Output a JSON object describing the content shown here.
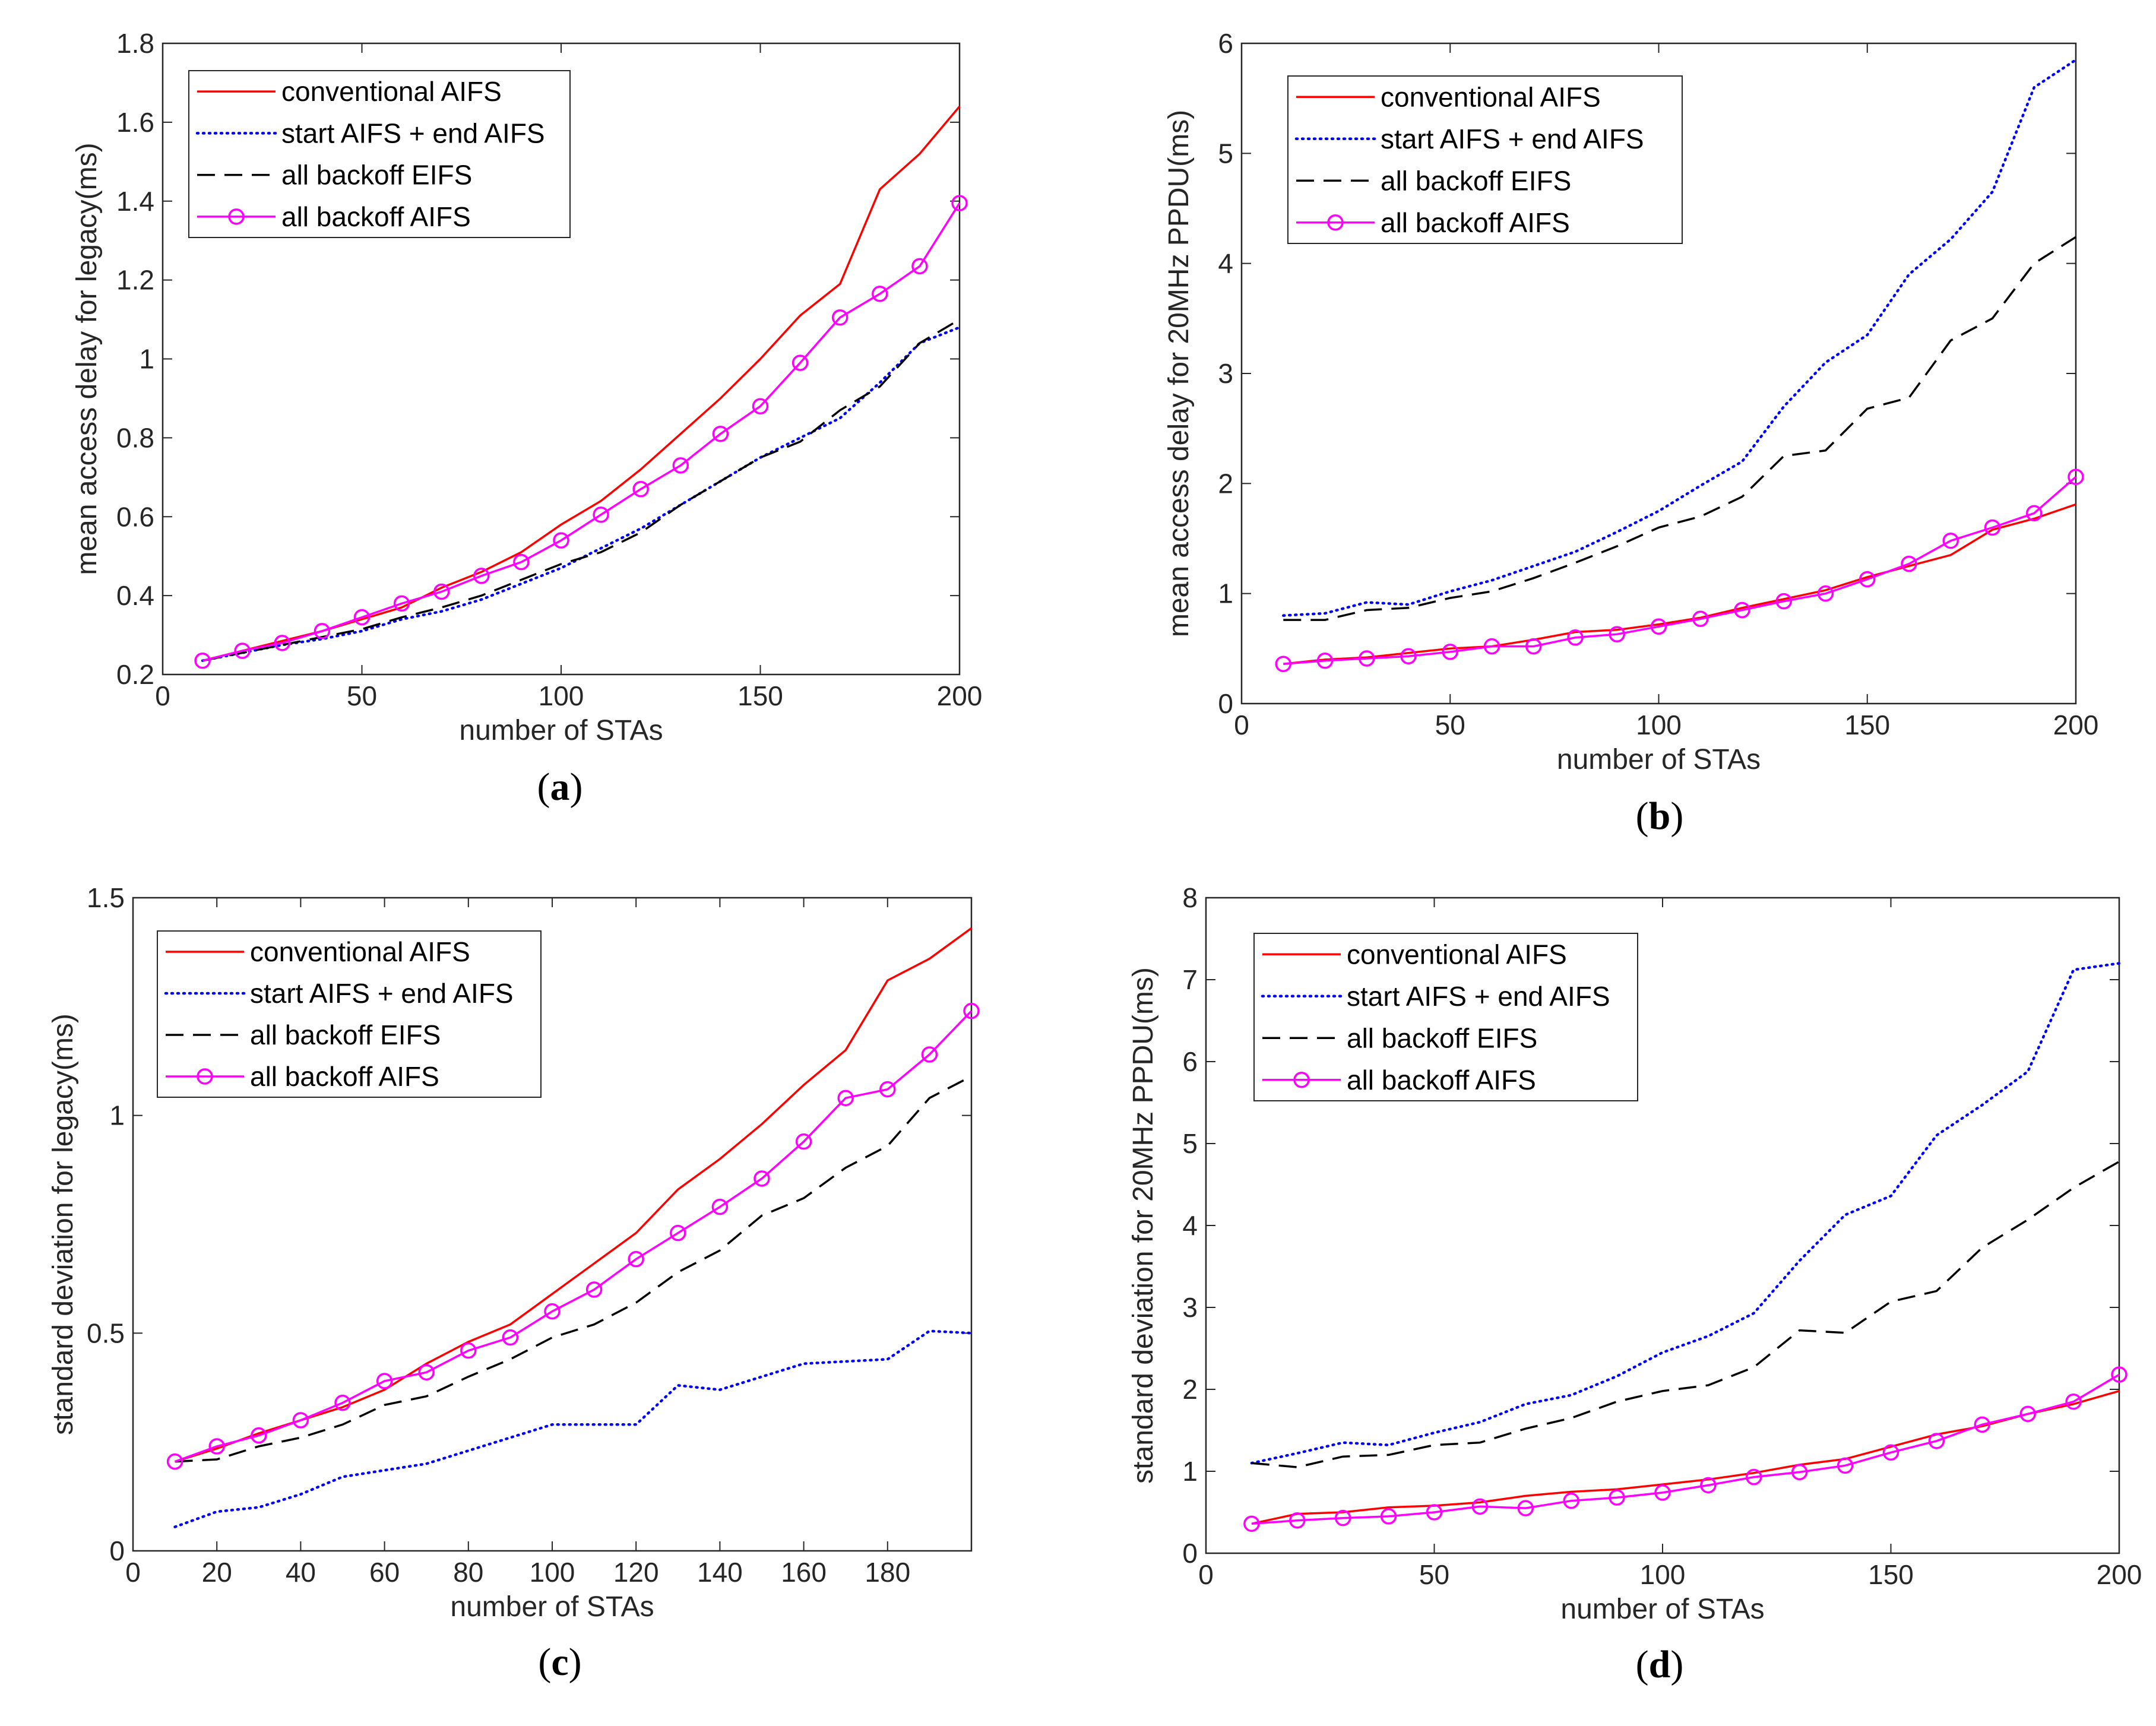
{
  "colors": {
    "conventional": "#ff0000",
    "start_end": "#0000ff",
    "eifs": "#000000",
    "aifs": "#ff00ff",
    "axis": "#262626"
  },
  "legend_labels": [
    "conventional AIFS",
    "start AIFS + end AIFS",
    "all backoff EIFS",
    "all backoff AIFS"
  ],
  "chart_data": [
    {
      "id": "a",
      "type": "line",
      "caption": "a",
      "xlabel": "number of STAs",
      "ylabel": "mean access delay for legacy(ms)",
      "xlim": [
        0,
        200
      ],
      "ylim": [
        0.2,
        1.8
      ],
      "xticks": [
        0,
        50,
        100,
        150,
        200
      ],
      "xtick_labels": [
        "0",
        "50",
        "100",
        "150",
        "200"
      ],
      "yticks": [
        0.2,
        0.4,
        0.6,
        0.8,
        1,
        1.2,
        1.4,
        1.6,
        1.8
      ],
      "ytick_labels": [
        "0.2",
        "0.4",
        "0.6",
        "0.8",
        "1",
        "1.2",
        "1.4",
        "1.6",
        "1.8"
      ],
      "legend_position": "top-left",
      "x": [
        10,
        20,
        30,
        40,
        50,
        60,
        70,
        80,
        90,
        100,
        110,
        120,
        130,
        140,
        150,
        160,
        170,
        180,
        190,
        200
      ],
      "series": [
        {
          "name": "conventional AIFS",
          "style": "solid",
          "values": [
            0.235,
            0.26,
            0.285,
            0.31,
            0.34,
            0.37,
            0.42,
            0.46,
            0.51,
            0.58,
            0.64,
            0.72,
            0.81,
            0.9,
            1.0,
            1.11,
            1.19,
            1.43,
            1.52,
            1.64
          ]
        },
        {
          "name": "start AIFS + end AIFS",
          "style": "dotted",
          "values": [
            0.235,
            0.255,
            0.275,
            0.29,
            0.31,
            0.34,
            0.36,
            0.39,
            0.43,
            0.47,
            0.52,
            0.57,
            0.63,
            0.69,
            0.75,
            0.8,
            0.85,
            0.94,
            1.04,
            1.08
          ]
        },
        {
          "name": "all backoff EIFS",
          "style": "dashed",
          "values": [
            0.235,
            0.255,
            0.275,
            0.295,
            0.315,
            0.345,
            0.37,
            0.4,
            0.44,
            0.48,
            0.51,
            0.56,
            0.63,
            0.69,
            0.75,
            0.79,
            0.87,
            0.93,
            1.04,
            1.1
          ]
        },
        {
          "name": "all backoff AIFS",
          "style": "markers",
          "values": [
            0.235,
            0.26,
            0.28,
            0.31,
            0.345,
            0.38,
            0.41,
            0.45,
            0.485,
            0.54,
            0.605,
            0.67,
            0.73,
            0.81,
            0.88,
            0.99,
            1.105,
            1.165,
            1.235,
            1.395
          ]
        }
      ]
    },
    {
      "id": "b",
      "type": "line",
      "caption": "b",
      "xlabel": "number of STAs",
      "ylabel": "mean access delay for 20MHz PPDU(ms)",
      "xlim": [
        0,
        200
      ],
      "ylim": [
        0,
        6
      ],
      "xticks": [
        0,
        50,
        100,
        150,
        200
      ],
      "xtick_labels": [
        "0",
        "50",
        "100",
        "150",
        "200"
      ],
      "yticks": [
        0,
        1,
        2,
        3,
        4,
        5,
        6
      ],
      "ytick_labels": [
        "0",
        "1",
        "2",
        "3",
        "4",
        "5",
        "6"
      ],
      "legend_position": "top-left",
      "x": [
        10,
        20,
        30,
        40,
        50,
        60,
        70,
        80,
        90,
        100,
        110,
        120,
        130,
        140,
        150,
        160,
        170,
        180,
        190,
        200
      ],
      "series": [
        {
          "name": "conventional AIFS",
          "style": "solid",
          "values": [
            0.36,
            0.4,
            0.42,
            0.46,
            0.5,
            0.52,
            0.58,
            0.65,
            0.67,
            0.72,
            0.78,
            0.87,
            0.95,
            1.03,
            1.15,
            1.25,
            1.35,
            1.58,
            1.68,
            1.81
          ]
        },
        {
          "name": "start AIFS + end AIFS",
          "style": "dotted",
          "values": [
            0.8,
            0.82,
            0.92,
            0.9,
            1.02,
            1.12,
            1.25,
            1.38,
            1.56,
            1.75,
            1.98,
            2.2,
            2.7,
            3.1,
            3.35,
            3.9,
            4.22,
            4.65,
            5.6,
            5.85
          ]
        },
        {
          "name": "all backoff EIFS",
          "style": "dashed",
          "values": [
            0.76,
            0.76,
            0.85,
            0.87,
            0.96,
            1.02,
            1.14,
            1.28,
            1.43,
            1.6,
            1.7,
            1.88,
            2.25,
            2.3,
            2.68,
            2.78,
            3.3,
            3.5,
            4.0,
            4.24
          ]
        },
        {
          "name": "all backoff AIFS",
          "style": "markers",
          "values": [
            0.36,
            0.39,
            0.41,
            0.43,
            0.47,
            0.52,
            0.52,
            0.6,
            0.63,
            0.7,
            0.77,
            0.85,
            0.93,
            1.0,
            1.13,
            1.27,
            1.48,
            1.6,
            1.73,
            2.06
          ]
        }
      ]
    },
    {
      "id": "c",
      "type": "line",
      "caption": "c",
      "xlabel": "number of STAs",
      "ylabel": "standard deviation for legacy(ms)",
      "xlim": [
        0,
        200
      ],
      "ylim": [
        0,
        1.5
      ],
      "xticks": [
        0,
        20,
        40,
        60,
        80,
        100,
        120,
        140,
        160,
        180
      ],
      "xtick_labels": [
        "0",
        "20",
        "40",
        "60",
        "80",
        "100",
        "120",
        "140",
        "160",
        "180"
      ],
      "yticks": [
        0,
        0.5,
        1,
        1.5
      ],
      "ytick_labels": [
        "0",
        "0.5",
        "1",
        "1.5"
      ],
      "legend_position": "top-left",
      "x": [
        10,
        20,
        30,
        40,
        50,
        60,
        70,
        80,
        90,
        100,
        110,
        120,
        130,
        140,
        150,
        160,
        170,
        180,
        190,
        200
      ],
      "series": [
        {
          "name": "conventional AIFS",
          "style": "solid",
          "values": [
            0.205,
            0.235,
            0.27,
            0.3,
            0.33,
            0.37,
            0.43,
            0.48,
            0.52,
            0.59,
            0.66,
            0.73,
            0.83,
            0.9,
            0.98,
            1.07,
            1.15,
            1.31,
            1.36,
            1.43
          ]
        },
        {
          "name": "start AIFS + end AIFS",
          "style": "dotted",
          "values": [
            0.055,
            0.09,
            0.1,
            0.13,
            0.17,
            0.185,
            0.2,
            0.23,
            0.26,
            0.29,
            0.29,
            0.29,
            0.38,
            0.37,
            0.4,
            0.43,
            0.435,
            0.44,
            0.505,
            0.5
          ]
        },
        {
          "name": "all backoff EIFS",
          "style": "dashed",
          "values": [
            0.205,
            0.21,
            0.24,
            0.26,
            0.29,
            0.335,
            0.355,
            0.4,
            0.44,
            0.49,
            0.52,
            0.57,
            0.64,
            0.69,
            0.77,
            0.81,
            0.88,
            0.93,
            1.04,
            1.09
          ]
        },
        {
          "name": "all backoff AIFS",
          "style": "markers",
          "values": [
            0.205,
            0.24,
            0.265,
            0.3,
            0.34,
            0.39,
            0.41,
            0.46,
            0.49,
            0.55,
            0.6,
            0.67,
            0.73,
            0.79,
            0.855,
            0.94,
            1.04,
            1.06,
            1.14,
            1.24
          ]
        }
      ]
    },
    {
      "id": "d",
      "type": "line",
      "caption": "d",
      "xlabel": "number of STAs",
      "ylabel": "standard deviation for 20MHz PPDU(ms)",
      "xlim": [
        0,
        200
      ],
      "ylim": [
        0,
        8
      ],
      "xticks": [
        0,
        50,
        100,
        150,
        200
      ],
      "xtick_labels": [
        "0",
        "50",
        "100",
        "150",
        "200"
      ],
      "yticks": [
        0,
        1,
        2,
        3,
        4,
        5,
        6,
        7,
        8
      ],
      "ytick_labels": [
        "0",
        "1",
        "2",
        "3",
        "4",
        "5",
        "6",
        "7",
        "8"
      ],
      "legend_position": "top-left",
      "x": [
        10,
        20,
        30,
        40,
        50,
        60,
        70,
        80,
        90,
        100,
        110,
        120,
        130,
        140,
        150,
        160,
        170,
        180,
        190,
        200
      ],
      "series": [
        {
          "name": "conventional AIFS",
          "style": "solid",
          "values": [
            0.36,
            0.48,
            0.5,
            0.56,
            0.58,
            0.62,
            0.7,
            0.75,
            0.78,
            0.84,
            0.9,
            0.98,
            1.08,
            1.15,
            1.3,
            1.45,
            1.55,
            1.7,
            1.82,
            1.98
          ]
        },
        {
          "name": "start AIFS + end AIFS",
          "style": "dotted",
          "values": [
            1.1,
            1.22,
            1.35,
            1.32,
            1.47,
            1.6,
            1.82,
            1.93,
            2.16,
            2.45,
            2.65,
            2.93,
            3.57,
            4.13,
            4.36,
            5.1,
            5.47,
            5.88,
            7.12,
            7.2
          ]
        },
        {
          "name": "all backoff EIFS",
          "style": "dashed",
          "values": [
            1.1,
            1.05,
            1.18,
            1.2,
            1.32,
            1.35,
            1.52,
            1.65,
            1.85,
            1.98,
            2.05,
            2.27,
            2.72,
            2.69,
            3.07,
            3.2,
            3.73,
            4.07,
            4.46,
            4.78
          ]
        },
        {
          "name": "all backoff AIFS",
          "style": "markers",
          "values": [
            0.36,
            0.4,
            0.43,
            0.45,
            0.5,
            0.57,
            0.55,
            0.64,
            0.68,
            0.74,
            0.83,
            0.93,
            0.99,
            1.07,
            1.23,
            1.37,
            1.57,
            1.7,
            1.85,
            2.18
          ]
        }
      ]
    }
  ]
}
